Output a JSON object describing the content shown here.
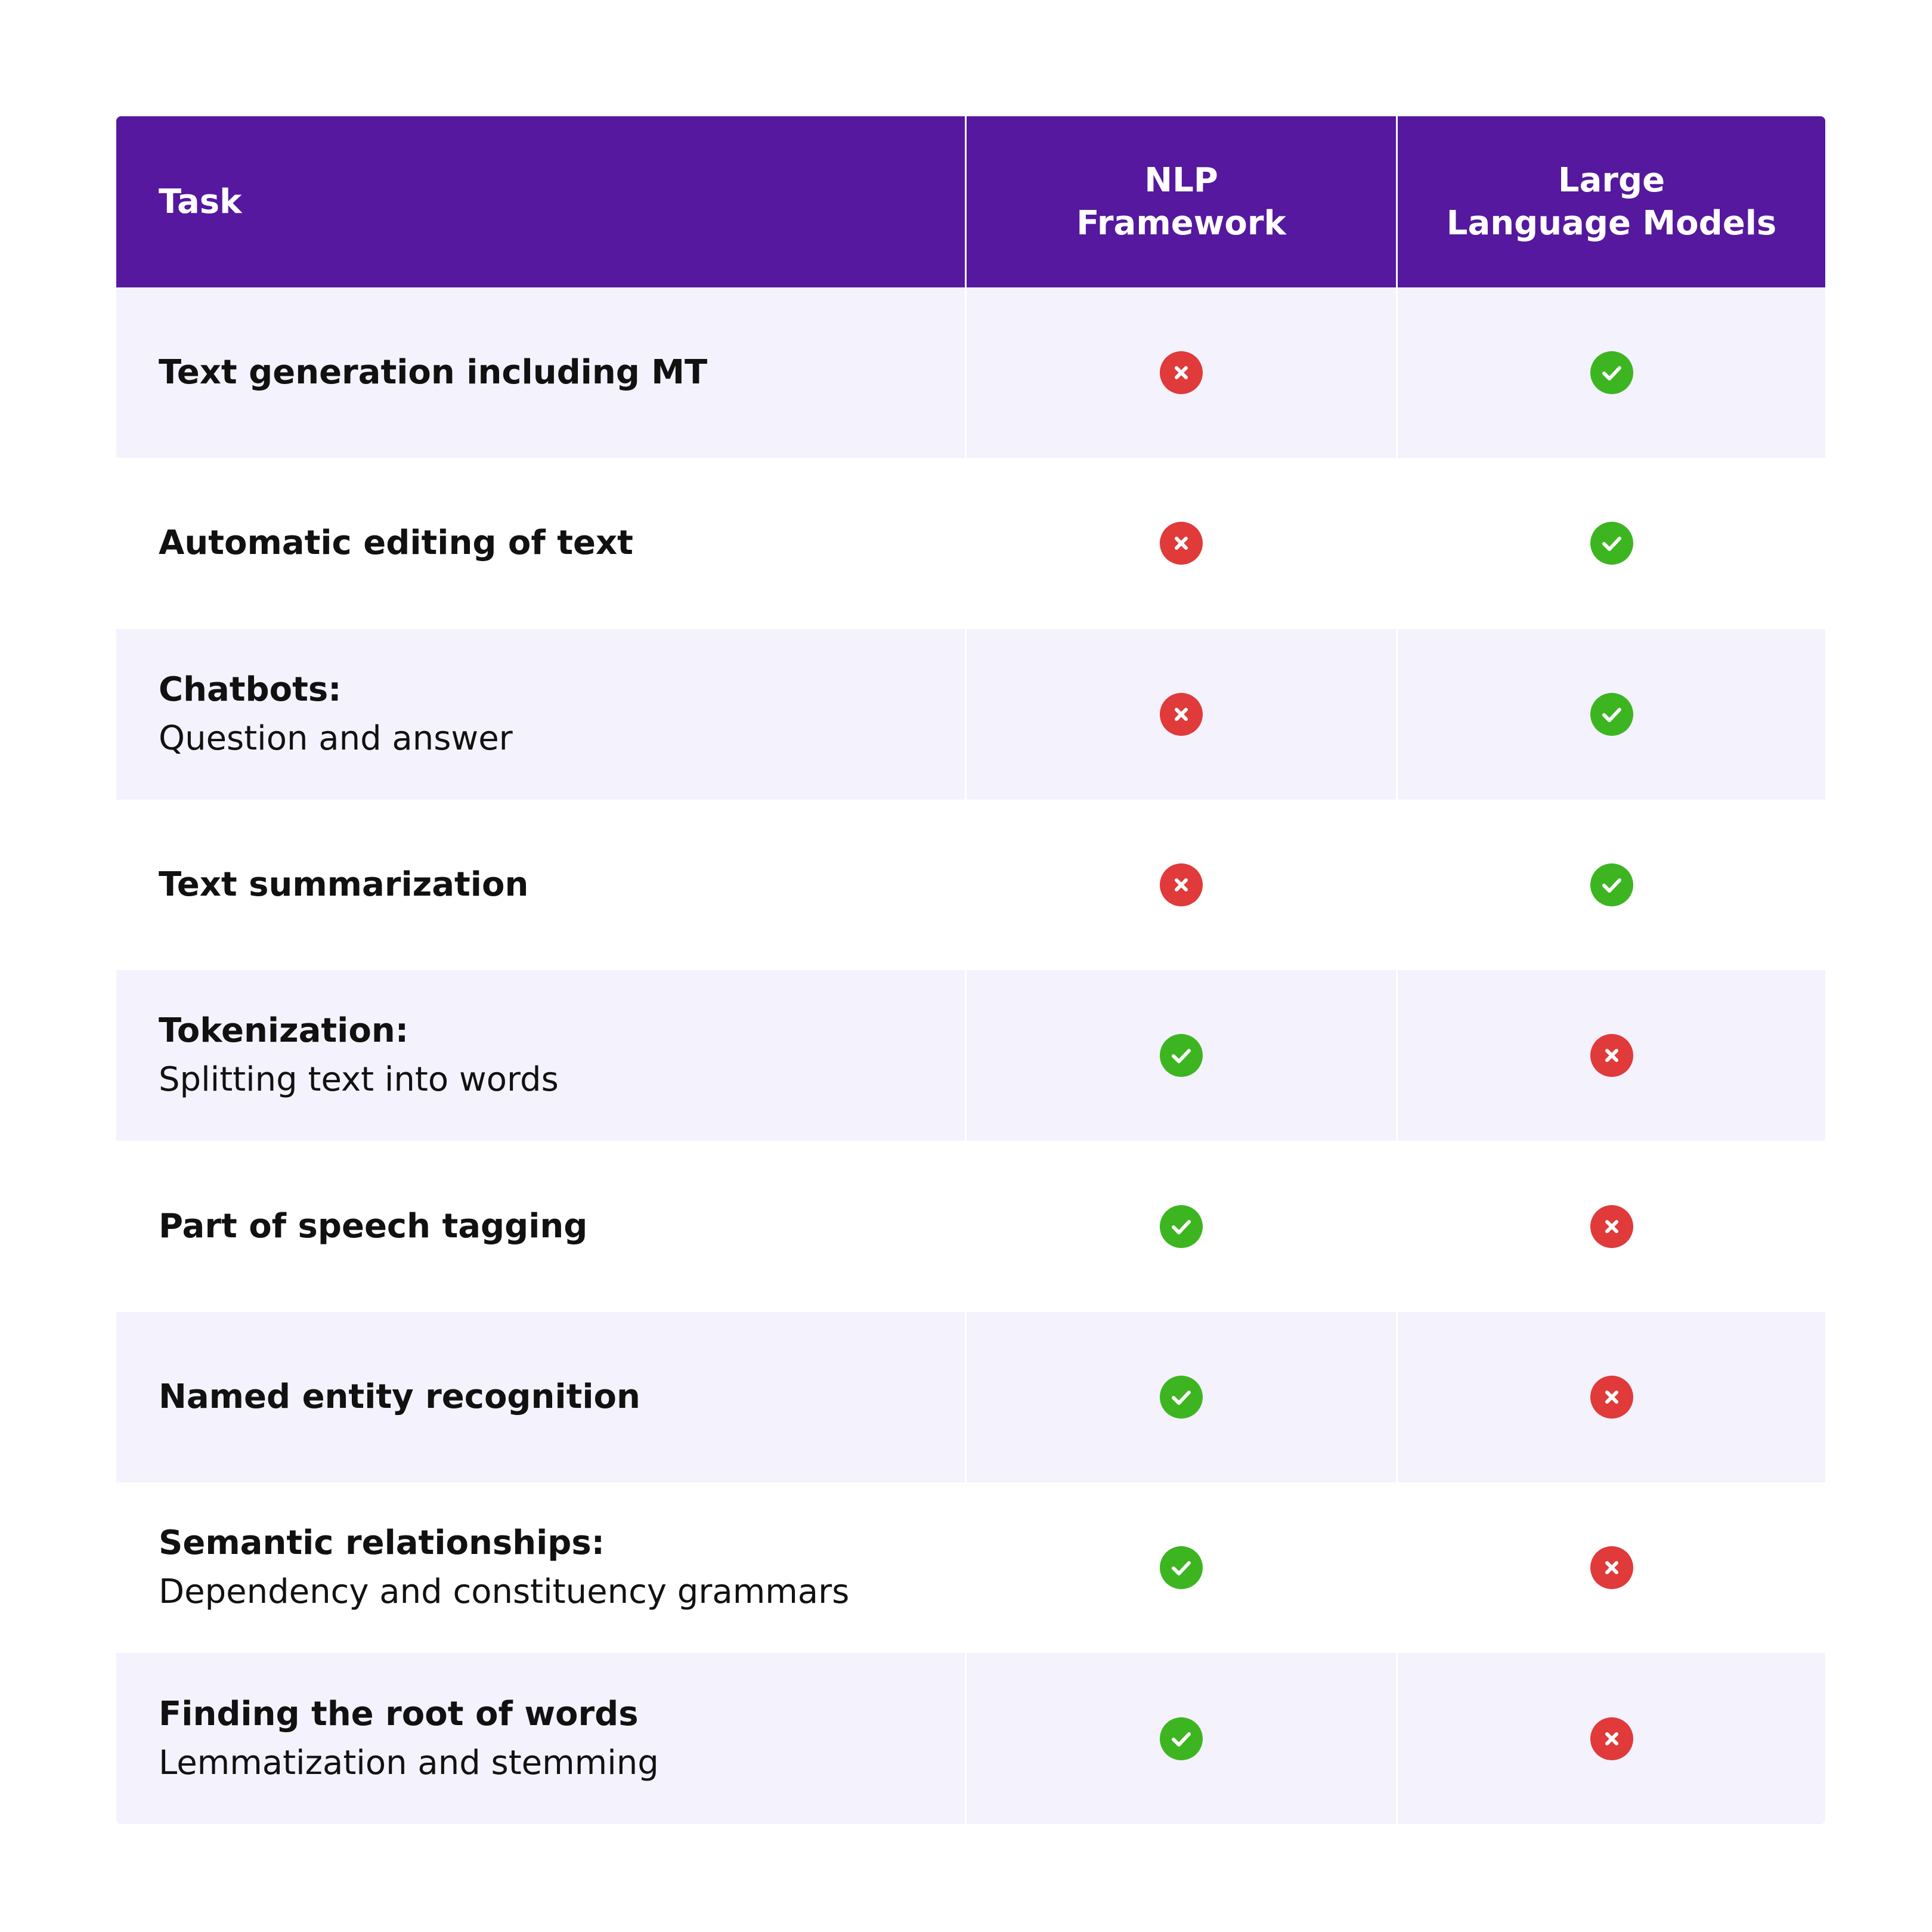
{
  "table": {
    "header": [
      [
        "Task"
      ],
      [
        "NLP",
        "Framework"
      ],
      [
        "Large",
        "Language Models"
      ]
    ],
    "rows": [
      {
        "title": "Text generation including MT",
        "nlp": false,
        "llm": true
      },
      {
        "title": "Automatic editing of text",
        "nlp": false,
        "llm": true
      },
      {
        "title": "Chatbots:",
        "subtitle": "Question and answer",
        "nlp": false,
        "llm": true
      },
      {
        "title": "Text summarization",
        "nlp": false,
        "llm": true
      },
      {
        "title": "Tokenization:",
        "subtitle": "Splitting text into words",
        "nlp": true,
        "llm": false
      },
      {
        "title": "Part of speech tagging",
        "nlp": true,
        "llm": false
      },
      {
        "title": "Named entity recognition",
        "nlp": true,
        "llm": false
      },
      {
        "title": "Semantic relationships:",
        "subtitle": "Dependency and constituency grammars",
        "nlp": true,
        "llm": false
      },
      {
        "title": "Finding the root of words",
        "subtitle": "Lemmatization and stemming",
        "nlp": true,
        "llm": false
      }
    ]
  }
}
